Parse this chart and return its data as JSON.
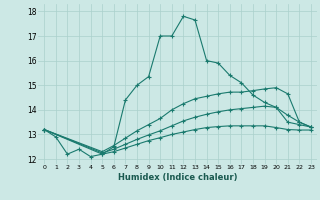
{
  "xlabel": "Humidex (Indice chaleur)",
  "background_color": "#cce8e5",
  "grid_color": "#aad0cc",
  "line_color": "#1a7a6e",
  "xlim": [
    -0.5,
    23.5
  ],
  "ylim": [
    11.8,
    18.3
  ],
  "xticks": [
    0,
    1,
    2,
    3,
    4,
    5,
    6,
    7,
    8,
    9,
    10,
    11,
    12,
    13,
    14,
    15,
    16,
    17,
    18,
    19,
    20,
    21,
    22,
    23
  ],
  "yticks": [
    12,
    13,
    14,
    15,
    16,
    17,
    18
  ],
  "series": [
    [
      13.2,
      12.9,
      12.2,
      12.4,
      12.1,
      12.2,
      12.5,
      14.4,
      15.0,
      15.35,
      17.0,
      17.0,
      17.8,
      17.65,
      16.0,
      15.9,
      15.4,
      15.1,
      14.6,
      14.3,
      14.1,
      13.5,
      13.4,
      13.3
    ],
    [
      13.2,
      null,
      null,
      null,
      null,
      12.3,
      12.55,
      12.85,
      13.15,
      13.4,
      13.65,
      14.0,
      14.25,
      14.45,
      14.55,
      14.65,
      14.72,
      14.72,
      14.78,
      14.85,
      14.9,
      14.65,
      13.5,
      13.3
    ],
    [
      13.2,
      null,
      null,
      null,
      null,
      12.25,
      12.4,
      12.6,
      12.8,
      12.98,
      13.15,
      13.35,
      13.55,
      13.7,
      13.82,
      13.92,
      14.0,
      14.05,
      14.1,
      14.15,
      14.1,
      13.78,
      13.5,
      13.3
    ],
    [
      13.2,
      null,
      null,
      null,
      null,
      12.2,
      12.3,
      12.45,
      12.6,
      12.75,
      12.87,
      13.0,
      13.1,
      13.2,
      13.28,
      13.32,
      13.35,
      13.35,
      13.35,
      13.35,
      13.28,
      13.2,
      13.18,
      13.18
    ]
  ]
}
